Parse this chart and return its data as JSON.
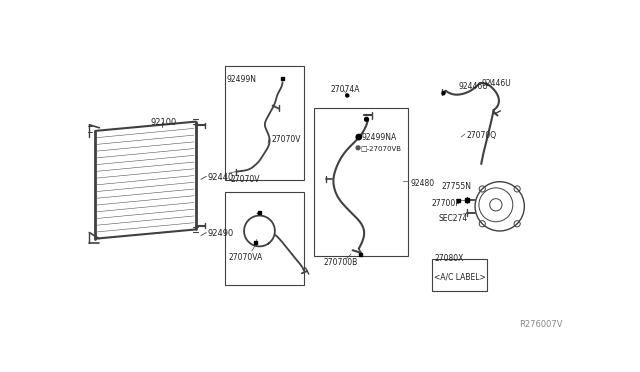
{
  "bg_color": "#ffffff",
  "line_color": "#404040",
  "label_color": "#222222",
  "fig_width": 6.4,
  "fig_height": 3.72,
  "dpi": 100,
  "watermark": "R276007V",
  "parts": {
    "condenser_label": "92100",
    "hose_upper_label": "92440",
    "hose_lower_label": "92490",
    "box1_label1": "92499N",
    "box1_part_label1": "27070V",
    "box1_part_label2": "27070V",
    "box2_part_label": "27070VA",
    "center_above_label": "27074A",
    "center_box_label2": "92499NA",
    "center_box_label3": "27070VB",
    "center_box_label4": "92480",
    "center_box_part_label": "270700B",
    "right_top_label1": "92446U",
    "right_top_label2": "27070Q",
    "right_mid_label1": "27755N",
    "right_mid_label2": "27700P",
    "right_mid_label3": "SEC274",
    "label_box_num": "27080X",
    "label_box_text": "<A/C LABEL>"
  }
}
